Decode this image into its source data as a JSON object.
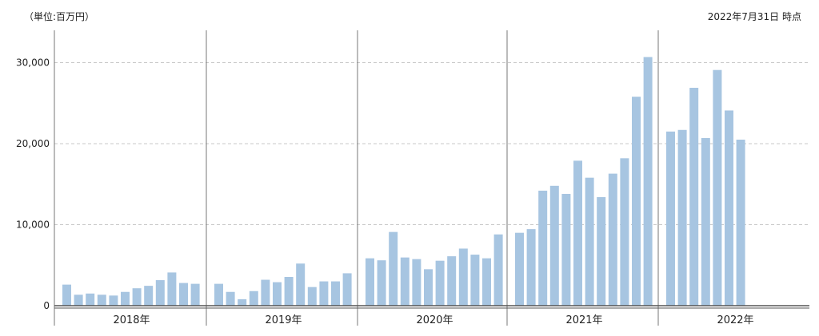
{
  "header": {
    "unit_label": "（単位:百万円）",
    "as_of_label": "2022年7月31日 時点"
  },
  "colors": {
    "bar": "#a7c5e1",
    "grid": "#c8c8c8",
    "separator": "#777777",
    "axis": "#555555"
  },
  "chart_data": {
    "type": "bar",
    "title": "",
    "xlabel": "",
    "ylabel": "",
    "ylim": [
      0,
      34000
    ],
    "yticks": [
      0,
      10000,
      20000,
      30000
    ],
    "ytick_labels": [
      "0",
      "10,000",
      "20,000",
      "30,000"
    ],
    "grid": true,
    "groups": [
      {
        "label": "2018年",
        "values": [
          2600,
          1350,
          1500,
          1350,
          1250,
          1700,
          2150,
          2450,
          3150,
          4100,
          2800,
          2700
        ]
      },
      {
        "label": "2019年",
        "values": [
          2700,
          1700,
          800,
          1800,
          3200,
          2900,
          3550,
          5200,
          2300,
          3000,
          3000,
          4000
        ]
      },
      {
        "label": "2020年",
        "values": [
          5850,
          5600,
          9100,
          5950,
          5750,
          4500,
          5550,
          6100,
          7050,
          6300,
          5850,
          8800
        ]
      },
      {
        "label": "2021年",
        "values": [
          9000,
          9450,
          14200,
          14800,
          13800,
          17900,
          15800,
          13400,
          16300,
          18200,
          25800,
          30700
        ]
      },
      {
        "label": "2022年",
        "values": [
          21500,
          21700,
          26900,
          20700,
          29100,
          24100,
          20500
        ]
      }
    ]
  }
}
